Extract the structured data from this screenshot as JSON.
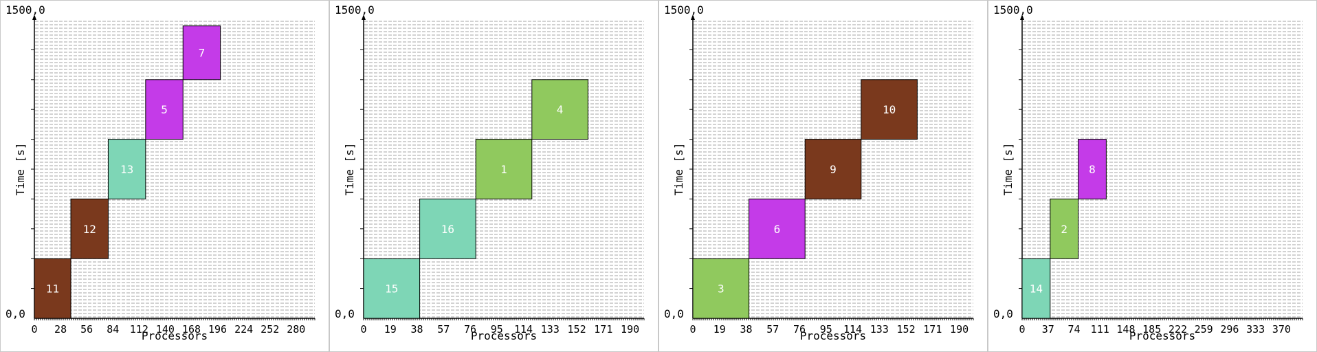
{
  "chart_data": [
    {
      "type": "gantt",
      "ylabel": "Time [s]",
      "xlabel": "Processors",
      "ymin_label": "0,0",
      "ymax_label": "1500,0",
      "ylim": [
        0,
        1500
      ],
      "xlim": [
        0,
        300
      ],
      "x_ticks": [
        0,
        28,
        56,
        84,
        112,
        140,
        168,
        196,
        224,
        252,
        280
      ],
      "colors": {
        "brown": "#7a391d",
        "teal": "#7ed6b6",
        "magenta": "#c43be8",
        "green": "#90c95e"
      },
      "jobs": [
        {
          "label": "11",
          "color": "#7a391d",
          "proc_start": 0,
          "proc_end": 39,
          "t_start": 0,
          "t_end": 300
        },
        {
          "label": "12",
          "color": "#7a391d",
          "proc_start": 39,
          "proc_end": 79,
          "t_start": 300,
          "t_end": 600
        },
        {
          "label": "13",
          "color": "#7ed6b6",
          "proc_start": 79,
          "proc_end": 119,
          "t_start": 600,
          "t_end": 900
        },
        {
          "label": "5",
          "color": "#c43be8",
          "proc_start": 119,
          "proc_end": 159,
          "t_start": 900,
          "t_end": 1200
        },
        {
          "label": "7",
          "color": "#c43be8",
          "proc_start": 159,
          "proc_end": 199,
          "t_start": 1200,
          "t_end": 1470
        }
      ]
    },
    {
      "type": "gantt",
      "ylabel": "Time [s]",
      "xlabel": "Processors",
      "ymin_label": "0,0",
      "ymax_label": "1500,0",
      "ylim": [
        0,
        1500
      ],
      "xlim": [
        0,
        200
      ],
      "x_ticks": [
        0,
        19,
        38,
        57,
        76,
        95,
        114,
        133,
        152,
        171,
        190
      ],
      "jobs": [
        {
          "label": "15",
          "color": "#7ed6b6",
          "proc_start": 0,
          "proc_end": 40,
          "t_start": 0,
          "t_end": 300
        },
        {
          "label": "16",
          "color": "#7ed6b6",
          "proc_start": 40,
          "proc_end": 80,
          "t_start": 300,
          "t_end": 600
        },
        {
          "label": "1",
          "color": "#90c95e",
          "proc_start": 80,
          "proc_end": 120,
          "t_start": 600,
          "t_end": 900
        },
        {
          "label": "4",
          "color": "#90c95e",
          "proc_start": 120,
          "proc_end": 160,
          "t_start": 900,
          "t_end": 1200
        }
      ]
    },
    {
      "type": "gantt",
      "ylabel": "Time [s]",
      "xlabel": "Processors",
      "ymin_label": "0,0",
      "ymax_label": "1500,0",
      "ylim": [
        0,
        1500
      ],
      "xlim": [
        0,
        200
      ],
      "x_ticks": [
        0,
        19,
        38,
        57,
        76,
        95,
        114,
        133,
        152,
        171,
        190
      ],
      "jobs": [
        {
          "label": "3",
          "color": "#90c95e",
          "proc_start": 0,
          "proc_end": 40,
          "t_start": 0,
          "t_end": 300
        },
        {
          "label": "6",
          "color": "#c43be8",
          "proc_start": 40,
          "proc_end": 80,
          "t_start": 300,
          "t_end": 600
        },
        {
          "label": "9",
          "color": "#7a391d",
          "proc_start": 80,
          "proc_end": 120,
          "t_start": 600,
          "t_end": 900
        },
        {
          "label": "10",
          "color": "#7a391d",
          "proc_start": 120,
          "proc_end": 160,
          "t_start": 900,
          "t_end": 1200
        }
      ]
    },
    {
      "type": "gantt",
      "ylabel": "Time [s]",
      "xlabel": "Processors",
      "ymin_label": "0,0",
      "ymax_label": "1500,0",
      "ylim": [
        0,
        1500
      ],
      "xlim": [
        0,
        400
      ],
      "x_ticks": [
        0,
        37,
        74,
        111,
        148,
        185,
        222,
        259,
        296,
        333,
        370
      ],
      "jobs": [
        {
          "label": "14",
          "color": "#7ed6b6",
          "proc_start": 0,
          "proc_end": 40,
          "t_start": 0,
          "t_end": 300
        },
        {
          "label": "2",
          "color": "#90c95e",
          "proc_start": 40,
          "proc_end": 80,
          "t_start": 300,
          "t_end": 600
        },
        {
          "label": "8",
          "color": "#c43be8",
          "proc_start": 80,
          "proc_end": 120,
          "t_start": 600,
          "t_end": 900
        }
      ]
    }
  ]
}
